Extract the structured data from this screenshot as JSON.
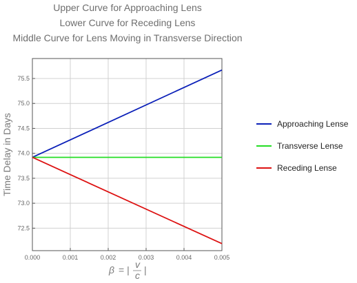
{
  "titles": [
    "Upper Curve for Approaching Lens",
    "Lower Curve for Receding Lens",
    "Middle Curve for Lens Moving in Transverse Direction"
  ],
  "chart_data": {
    "type": "line",
    "title": "Upper Curve for Approaching Lens / Lower Curve for Receding Lens / Middle Curve for Lens Moving in Transverse Direction",
    "xlabel": "β = | v/c |",
    "ylabel": "Time Delay in Days",
    "xlim": [
      0,
      0.005
    ],
    "ylim": [
      72.05,
      75.9
    ],
    "xticks": [
      "0.000",
      "0.001",
      "0.002",
      "0.003",
      "0.004",
      "0.005"
    ],
    "yticks": [
      "72.5",
      "73.0",
      "73.5",
      "74.0",
      "74.5",
      "75.0",
      "75.5"
    ],
    "grid": true,
    "legend_position": "right",
    "series": [
      {
        "name": "Approaching Lense",
        "color": "#0a1fb8",
        "x": [
          0,
          0.005
        ],
        "y": [
          73.92,
          75.67
        ]
      },
      {
        "name": "Transverse Lense",
        "color": "#22dd22",
        "x": [
          0,
          0.005
        ],
        "y": [
          73.92,
          73.92
        ]
      },
      {
        "name": "Receding Lense",
        "color": "#dd1111",
        "x": [
          0,
          0.005
        ],
        "y": [
          73.92,
          72.19
        ]
      }
    ]
  }
}
